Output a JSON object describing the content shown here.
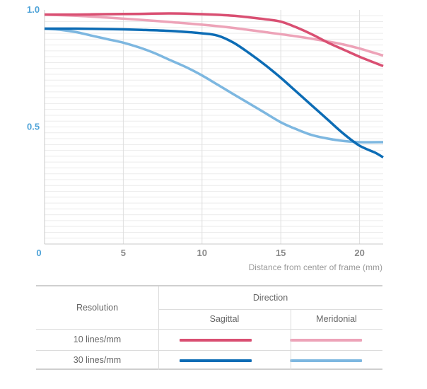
{
  "chart_data": {
    "type": "line",
    "x_range": [
      0,
      21.5
    ],
    "y_range": [
      0.0,
      1.0
    ],
    "y_ticks": [
      {
        "value": 1.0,
        "label": "1.0"
      },
      {
        "value": 0.5,
        "label": "0.5"
      }
    ],
    "x_ticks": [
      {
        "value": 0,
        "label": "0"
      },
      {
        "value": 5,
        "label": "5"
      },
      {
        "value": 10,
        "label": "10"
      },
      {
        "value": 15,
        "label": "15"
      },
      {
        "value": 20,
        "label": "20"
      }
    ],
    "xlabel": "Distance from center of frame (mm)",
    "grid": true,
    "series": [
      {
        "key": "s10",
        "color": "#d94f72",
        "points": [
          [
            0,
            0.98
          ],
          [
            2,
            0.98
          ],
          [
            4,
            0.982
          ],
          [
            6,
            0.983
          ],
          [
            8,
            0.985
          ],
          [
            10,
            0.982
          ],
          [
            12,
            0.975
          ],
          [
            14,
            0.96
          ],
          [
            15,
            0.95
          ],
          [
            16,
            0.925
          ],
          [
            17,
            0.895
          ],
          [
            18,
            0.86
          ],
          [
            19,
            0.83
          ],
          [
            20,
            0.8
          ],
          [
            21.5,
            0.76
          ]
        ]
      },
      {
        "key": "m10",
        "color": "#eda3b8",
        "points": [
          [
            0,
            0.98
          ],
          [
            2,
            0.975
          ],
          [
            4,
            0.967
          ],
          [
            6,
            0.958
          ],
          [
            8,
            0.948
          ],
          [
            10,
            0.937
          ],
          [
            12,
            0.923
          ],
          [
            14,
            0.905
          ],
          [
            16,
            0.887
          ],
          [
            18,
            0.865
          ],
          [
            19,
            0.852
          ],
          [
            20,
            0.835
          ],
          [
            21,
            0.815
          ],
          [
            21.5,
            0.805
          ]
        ]
      },
      {
        "key": "s30",
        "color": "#0c6cb5",
        "points": [
          [
            0,
            0.92
          ],
          [
            2,
            0.92
          ],
          [
            4,
            0.918
          ],
          [
            6,
            0.915
          ],
          [
            8,
            0.91
          ],
          [
            10,
            0.9
          ],
          [
            11,
            0.89
          ],
          [
            12,
            0.86
          ],
          [
            13,
            0.815
          ],
          [
            14,
            0.765
          ],
          [
            15,
            0.71
          ],
          [
            16,
            0.65
          ],
          [
            17,
            0.59
          ],
          [
            18,
            0.53
          ],
          [
            19,
            0.47
          ],
          [
            20,
            0.42
          ],
          [
            21,
            0.39
          ],
          [
            21.5,
            0.37
          ]
        ]
      },
      {
        "key": "m30",
        "color": "#7db7e0",
        "points": [
          [
            0,
            0.92
          ],
          [
            1,
            0.915
          ],
          [
            2,
            0.905
          ],
          [
            3,
            0.89
          ],
          [
            4,
            0.875
          ],
          [
            5,
            0.86
          ],
          [
            6,
            0.84
          ],
          [
            7,
            0.815
          ],
          [
            8,
            0.785
          ],
          [
            9,
            0.755
          ],
          [
            10,
            0.72
          ],
          [
            11,
            0.68
          ],
          [
            12,
            0.64
          ],
          [
            13,
            0.6
          ],
          [
            14,
            0.56
          ],
          [
            15,
            0.52
          ],
          [
            16,
            0.49
          ],
          [
            17,
            0.465
          ],
          [
            18,
            0.45
          ],
          [
            19,
            0.44
          ],
          [
            20,
            0.435
          ],
          [
            21.5,
            0.435
          ]
        ]
      }
    ]
  },
  "legend": {
    "resolution_header": "Resolution",
    "direction_header": "Direction",
    "sagittal_label": "Sagittal",
    "meridional_label": "Meridonial",
    "rows": [
      {
        "label": "10 lines/mm",
        "sagittal_color": "#d94f72",
        "meridional_color": "#eda3b8"
      },
      {
        "label": "30 lines/mm",
        "sagittal_color": "#0c6cb5",
        "meridional_color": "#7db7e0"
      }
    ]
  }
}
